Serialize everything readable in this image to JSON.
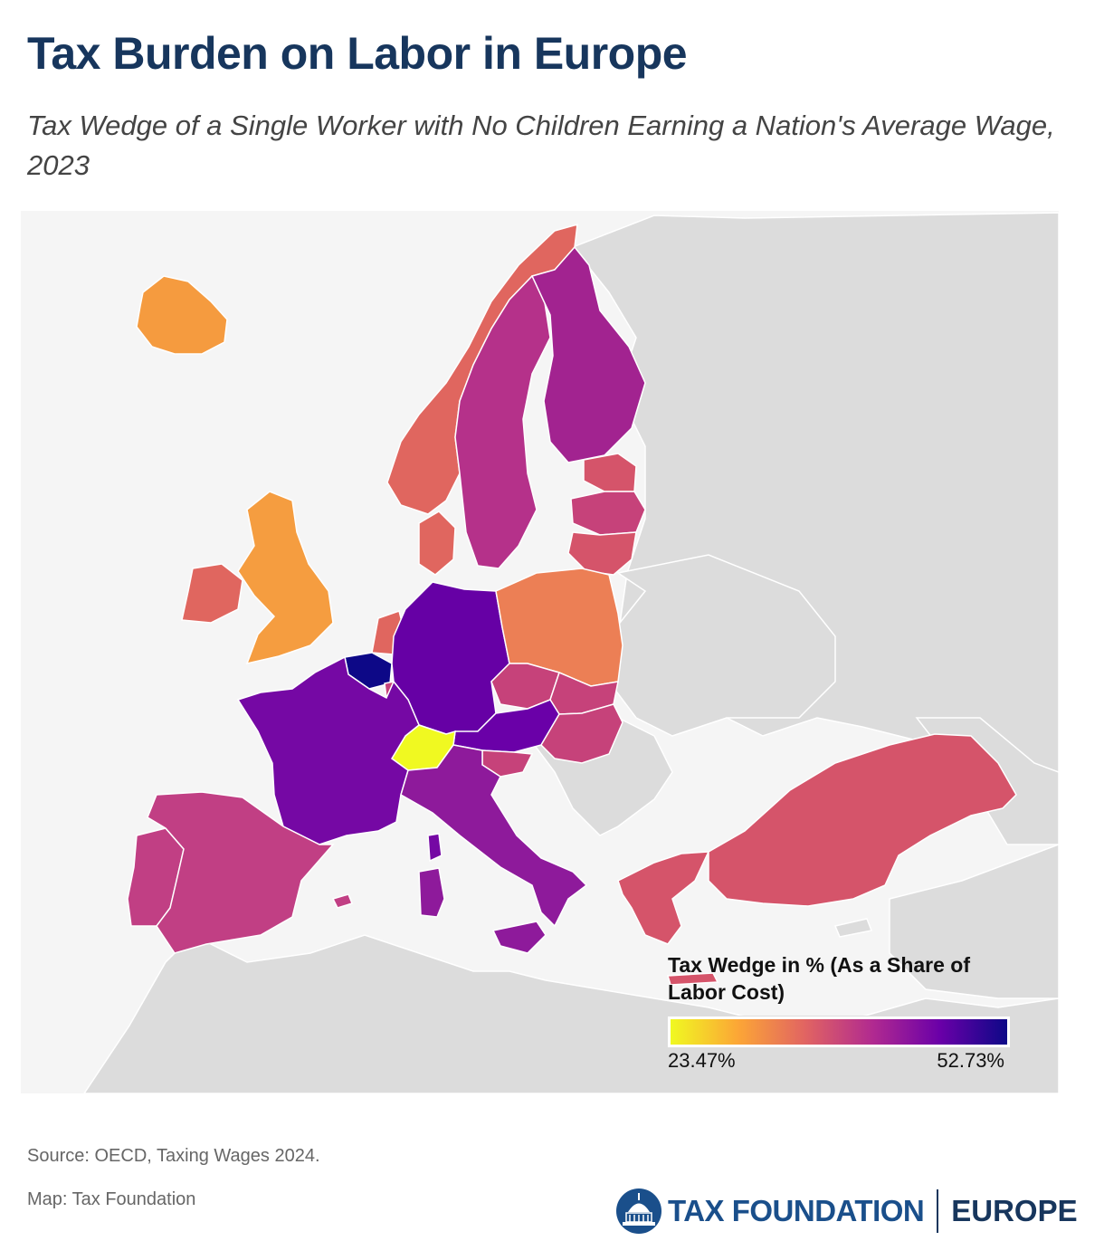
{
  "header": {
    "title": "Tax Burden on Labor in Europe",
    "subtitle": "Tax Wedge of a Single Worker with No Children Earning a Nation's Average Wage, 2023"
  },
  "legend": {
    "title": "Tax Wedge in % (As a Share of Labor Cost)",
    "min_label": "23.47%",
    "max_label": "52.73%",
    "colors": [
      "#f0f921",
      "#fca636",
      "#e16462",
      "#b12a90",
      "#6a00a8",
      "#0d0887"
    ]
  },
  "map": {
    "background_color": "#f5f5f5",
    "non_data_color": "#dcdcdc",
    "border_color": "#ffffff",
    "countries": [
      {
        "name": "Iceland",
        "color": "#f59b3f"
      },
      {
        "name": "Norway",
        "color": "#e0665f"
      },
      {
        "name": "Sweden",
        "color": "#b5318a"
      },
      {
        "name": "Finland",
        "color": "#a22390"
      },
      {
        "name": "Estonia",
        "color": "#d5546a"
      },
      {
        "name": "Latvia",
        "color": "#c6427a"
      },
      {
        "name": "Lithuania",
        "color": "#d5546a"
      },
      {
        "name": "Denmark",
        "color": "#e0665f"
      },
      {
        "name": "Ireland",
        "color": "#e0665f"
      },
      {
        "name": "United Kingdom",
        "color": "#f59d40"
      },
      {
        "name": "Netherlands",
        "color": "#e0665f"
      },
      {
        "name": "Belgium",
        "color": "#0d0887"
      },
      {
        "name": "Luxembourg",
        "color": "#c6427a"
      },
      {
        "name": "Germany",
        "color": "#6600a5"
      },
      {
        "name": "Poland",
        "color": "#ec7f55"
      },
      {
        "name": "Czechia",
        "color": "#c6427a"
      },
      {
        "name": "Slovakia",
        "color": "#c6427a"
      },
      {
        "name": "Austria",
        "color": "#6a00a8"
      },
      {
        "name": "Hungary",
        "color": "#c6427a"
      },
      {
        "name": "Slovenia",
        "color": "#c6427a"
      },
      {
        "name": "Switzerland",
        "color": "#f0f921"
      },
      {
        "name": "France",
        "color": "#7508a4"
      },
      {
        "name": "Italy",
        "color": "#8e1a9b"
      },
      {
        "name": "Spain",
        "color": "#c13f84"
      },
      {
        "name": "Portugal",
        "color": "#c13f84"
      },
      {
        "name": "Greece",
        "color": "#d5546a"
      },
      {
        "name": "Turkey",
        "color": "#d5546a"
      }
    ]
  },
  "footer": {
    "source": "Source: OECD, Taxing Wages 2024.",
    "credit": "Map: Tax Foundation",
    "logo_text": "TAX FOUNDATION",
    "logo_region": "EUROPE"
  }
}
